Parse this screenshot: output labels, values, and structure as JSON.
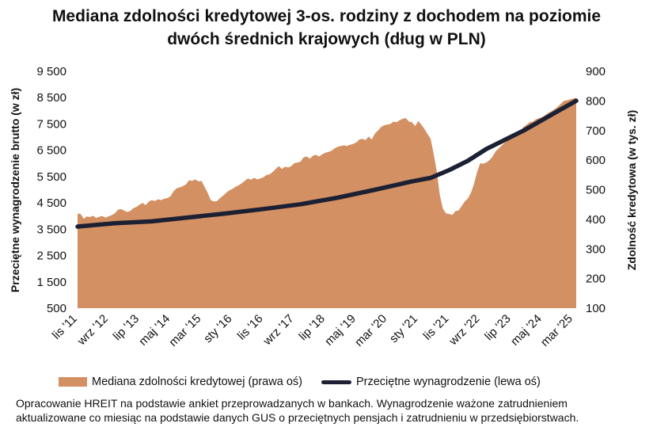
{
  "title_lines": [
    "Mediana zdolności kredytowej 3-os. rodziny z dochodem na poziomie",
    "dwóch średnich krajowych (dług w PLN)"
  ],
  "source_lines": [
    "Opracowanie HREIT na podstawie ankiet przeprowadzanych w bankach. Wynagrodzenie ważone zatrudnieniem",
    "aktualizowane co miesiąc na podstawie danych GUS o przeciętnych pensjach i zatrudnieniu w przedsiębiorstwach."
  ],
  "colors": {
    "area": "#D39063",
    "line": "#1c2033"
  },
  "chart_data": {
    "type": "area",
    "left_axis": {
      "label": "Przeciętne wynagrodzenie brutto (w zł)",
      "ticks": [
        500,
        1500,
        2500,
        3500,
        4500,
        5500,
        6500,
        7500,
        8500,
        9500
      ],
      "tick_labels": [
        "500",
        "1 500",
        "2 500",
        "3 500",
        "4 500",
        "5 500",
        "6 500",
        "7 500",
        "8 500",
        "9 500"
      ],
      "range": [
        500,
        9500
      ]
    },
    "right_axis": {
      "label": "Zdolność kredytowa (w tys. zł)",
      "ticks": [
        100,
        200,
        300,
        400,
        500,
        600,
        700,
        800,
        900
      ],
      "tick_labels": [
        "100",
        "200",
        "300",
        "400",
        "500",
        "600",
        "700",
        "800",
        "900"
      ],
      "range": [
        100,
        900
      ]
    },
    "x_tick_labels": [
      "lis '11",
      "wrz '12",
      "lip '13",
      "maj '14",
      "mar '15",
      "sty '16",
      "lis '16",
      "wrz '17",
      "lip '18",
      "maj '19",
      "mar '20",
      "sty '21",
      "lis '21",
      "wrz '22",
      "lip '23",
      "maj '24",
      "mar '25"
    ],
    "x_tick_months": [
      0,
      10,
      20,
      30,
      40,
      50,
      60,
      70,
      80,
      90,
      100,
      110,
      120,
      130,
      140,
      150,
      160
    ],
    "x_range_months": [
      0,
      161
    ],
    "series": [
      {
        "name": "Mediana zdolności kredytowej (prawa oś)",
        "axis": "right",
        "kind": "area",
        "months": [
          0,
          1,
          2,
          3,
          4,
          5,
          6,
          7,
          8,
          9,
          10,
          11,
          12,
          13,
          14,
          15,
          16,
          17,
          18,
          19,
          20,
          21,
          22,
          23,
          24,
          25,
          26,
          27,
          28,
          29,
          30,
          31,
          32,
          33,
          34,
          35,
          36,
          37,
          38,
          39,
          40,
          41,
          42,
          43,
          44,
          45,
          46,
          47,
          48,
          49,
          50,
          51,
          52,
          53,
          54,
          55,
          56,
          57,
          58,
          59,
          60,
          61,
          62,
          63,
          64,
          65,
          66,
          67,
          68,
          69,
          70,
          71,
          72,
          73,
          74,
          75,
          76,
          77,
          78,
          79,
          80,
          81,
          82,
          83,
          84,
          85,
          86,
          87,
          88,
          89,
          90,
          91,
          92,
          93,
          94,
          95,
          96,
          97,
          98,
          99,
          100,
          101,
          102,
          103,
          104,
          105,
          106,
          107,
          108,
          109,
          110,
          111,
          112,
          113,
          114,
          115,
          116,
          117,
          118,
          119,
          120,
          121,
          122,
          123,
          124,
          125,
          126,
          127,
          128,
          129,
          130,
          131,
          132,
          133,
          134,
          135,
          136,
          137,
          138,
          139,
          140,
          141,
          142,
          143,
          144,
          145,
          146,
          147,
          148,
          149,
          150,
          151,
          152,
          153,
          154,
          155,
          156,
          157,
          158,
          159,
          160,
          161
        ],
        "values": [
          420,
          418,
          402,
          410,
          408,
          412,
          405,
          409,
          411,
          406,
          410,
          414,
          420,
          432,
          435,
          430,
          425,
          428,
          438,
          442,
          450,
          455,
          448,
          460,
          465,
          462,
          468,
          465,
          470,
          472,
          478,
          495,
          505,
          508,
          512,
          518,
          532,
          530,
          535,
          528,
          530,
          510,
          490,
          465,
          460,
          462,
          472,
          480,
          490,
          498,
          503,
          510,
          515,
          522,
          530,
          538,
          534,
          540,
          535,
          538,
          542,
          550,
          552,
          560,
          570,
          580,
          570,
          578,
          575,
          580,
          590,
          592,
          595,
          610,
          612,
          605,
          615,
          618,
          612,
          620,
          625,
          628,
          632,
          640,
          645,
          648,
          650,
          648,
          652,
          655,
          660,
          670,
          672,
          668,
          680,
          670,
          690,
          700,
          712,
          718,
          720,
          722,
          730,
          728,
          735,
          740,
          742,
          730,
          728,
          715,
          732,
          720,
          705,
          688,
          672,
          620,
          560,
          480,
          435,
          420,
          418,
          415,
          428,
          430,
          445,
          460,
          470,
          490,
          520,
          560,
          590,
          588,
          592,
          600,
          612,
          630,
          640,
          650,
          660,
          668,
          680,
          688,
          692,
          700,
          712,
          720,
          728,
          730,
          738,
          742,
          745,
          752,
          760,
          765,
          772,
          780,
          790,
          800,
          802,
          805,
          808,
          810
        ]
      },
      {
        "name": "Przeciętne wynagrodzenie (lewa oś)",
        "axis": "left",
        "kind": "line",
        "months": [
          0,
          12,
          24,
          36,
          48,
          60,
          72,
          84,
          96,
          108,
          114,
          120,
          126,
          132,
          138,
          144,
          150,
          156,
          161
        ],
        "values": [
          3600,
          3730,
          3800,
          3950,
          4100,
          4270,
          4450,
          4700,
          5000,
          5320,
          5450,
          5750,
          6100,
          6550,
          6900,
          7250,
          7650,
          8050,
          8380
        ]
      }
    ],
    "legend_position": "bottom",
    "grid": false
  }
}
